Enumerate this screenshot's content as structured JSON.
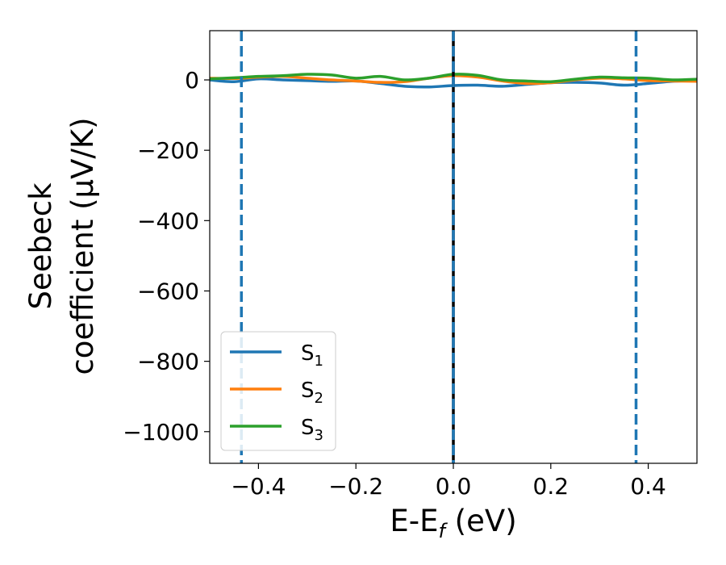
{
  "chart_data": {
    "type": "line",
    "xlabel_main": "E-E",
    "xlabel_sub": "f",
    "xlabel_unit": " (eV)",
    "ylabel_line1": "Seebeck",
    "ylabel_line2": "coefficient  (μV/K)",
    "xlim": [
      -0.5,
      0.5
    ],
    "ylim": [
      -1090,
      140
    ],
    "xticks": [
      -0.4,
      -0.2,
      0.0,
      0.2,
      0.4
    ],
    "xtick_labels": [
      "−0.4",
      "−0.2",
      "0.0",
      "0.2",
      "0.4"
    ],
    "yticks": [
      0,
      -200,
      -400,
      -600,
      -800,
      -1000
    ],
    "ytick_labels": [
      "0",
      "−200",
      "−400",
      "−600",
      "−800",
      "−1000"
    ],
    "grid": false,
    "legend_position": "lower-left",
    "vlines": [
      {
        "x": 0.0,
        "color": "#000000",
        "style": "solid"
      },
      {
        "x": -0.435,
        "color": "#1f77b4",
        "style": "dashed"
      },
      {
        "x": 0.0,
        "color": "#1f77b4",
        "style": "dashed"
      },
      {
        "x": 0.375,
        "color": "#1f77b4",
        "style": "dashed"
      }
    ],
    "x": [
      -0.5,
      -0.45,
      -0.4,
      -0.35,
      -0.3,
      -0.25,
      -0.2,
      -0.15,
      -0.1,
      -0.05,
      0.0,
      0.05,
      0.1,
      0.15,
      0.2,
      0.25,
      0.3,
      0.35,
      0.4,
      0.45,
      0.5
    ],
    "series": [
      {
        "name": "S",
        "sub": "1",
        "color": "#1f77b4",
        "values": [
          0,
          -5,
          3,
          0,
          -2,
          -4,
          -3,
          -10,
          -18,
          -20,
          -16,
          -15,
          -18,
          -13,
          -8,
          -7,
          -9,
          -15,
          -10,
          -4,
          -2
        ]
      },
      {
        "name": "S",
        "sub": "2",
        "color": "#ff7f0e",
        "values": [
          5,
          4,
          8,
          10,
          5,
          0,
          -3,
          -7,
          -5,
          5,
          12,
          8,
          -3,
          -10,
          -8,
          0,
          5,
          3,
          -2,
          -3,
          -4
        ]
      },
      {
        "name": "S",
        "sub": "3",
        "color": "#2ca02c",
        "values": [
          3,
          6,
          10,
          12,
          16,
          14,
          5,
          10,
          0,
          5,
          16,
          13,
          0,
          -3,
          -5,
          2,
          8,
          6,
          5,
          0,
          2
        ]
      }
    ]
  }
}
